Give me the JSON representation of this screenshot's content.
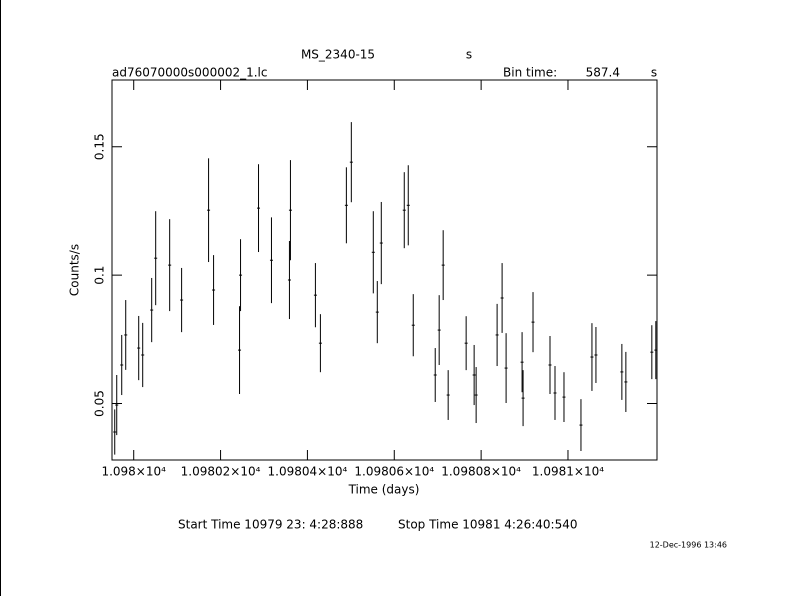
{
  "chart_data": {
    "type": "errorbar",
    "title": "MS_2340-15",
    "title_unit": "s",
    "subtitle": "ad76070000s000002_1.lc",
    "bin_label": "Bin time:",
    "bin_time": "587.4",
    "bin_unit": "s",
    "xlabel": "Time (days)",
    "ylabel": "Counts/s",
    "start_time": "Start Time 10979 23: 4:28:888",
    "stop_time": "Stop Time 10981  4:26:40:540",
    "date": "12-Dec-1996 13:46",
    "color": "#000000",
    "xlim": [
      10979.95,
      10981.205
    ],
    "ylim": [
      0.028,
      0.176
    ],
    "xticks": [
      {
        "value": 10980,
        "label": "1.098×10⁴"
      },
      {
        "value": 10980.2,
        "label": "1.09802×10⁴"
      },
      {
        "value": 10980.4,
        "label": "1.09804×10⁴"
      },
      {
        "value": 10980.6,
        "label": "1.09806×10⁴"
      },
      {
        "value": 10980.8,
        "label": "1.09808×10⁴"
      },
      {
        "value": 10981,
        "label": "1.0981×10⁴"
      }
    ],
    "yticks": [
      0.05,
      0.1,
      0.15
    ],
    "x": [
      10979.9563,
      10979.9609,
      10979.9724,
      10979.9816,
      10980.0115,
      10980.0207,
      10980.0414,
      10980.0506,
      10980.0828,
      10980.1103,
      10980.1724,
      10980.1839,
      10980.2437,
      10980.246,
      10980.2874,
      10980.3172,
      10980.3586,
      10980.3609,
      10980.4184,
      10980.4299,
      10980.4897,
      10980.5011,
      10980.5517,
      10980.5609,
      10980.5701,
      10980.623,
      10980.6322,
      10980.6437,
      10980.6943,
      10980.7034,
      10980.7126,
      10980.7241,
      10980.7655,
      10980.7839,
      10980.7885,
      10980.8368,
      10980.8483,
      10980.8575,
      10980.8943,
      10980.8966,
      10980.9195,
      10980.9586,
      10980.9701,
      10980.9908,
      10981.0299,
      10981.0552,
      10981.0644,
      10981.1241,
      10981.1333,
      10981.1931,
      10981.2023
    ],
    "values": [
      0.0389,
      0.0494,
      0.065,
      0.0767,
      0.0716,
      0.0689,
      0.0864,
      0.1066,
      0.1039,
      0.0903,
      0.1253,
      0.0942,
      0.0708,
      0.1,
      0.1261,
      0.1058,
      0.0981,
      0.1253,
      0.0922,
      0.0735,
      0.1272,
      0.144,
      0.1089,
      0.0856,
      0.1125,
      0.1253,
      0.1272,
      0.0805,
      0.0611,
      0.0786,
      0.1039,
      0.0533,
      0.0735,
      0.0611,
      0.0533,
      0.0767,
      0.0911,
      0.0638,
      0.0661,
      0.0521,
      0.0817,
      0.065,
      0.0541,
      0.0525,
      0.0416,
      0.0681,
      0.0689,
      0.0623,
      0.0584,
      0.07,
      0.0708
    ],
    "errors": [
      0.0088,
      0.0117,
      0.0117,
      0.0136,
      0.0125,
      0.0125,
      0.0125,
      0.0183,
      0.0179,
      0.0125,
      0.0202,
      0.0136,
      0.0171,
      0.014,
      0.0171,
      0.0167,
      0.0152,
      0.0195,
      0.0125,
      0.0113,
      0.0148,
      0.0156,
      0.016,
      0.0121,
      0.016,
      0.0148,
      0.0156,
      0.0121,
      0.0105,
      0.0136,
      0.0136,
      0.0097,
      0.0105,
      0.0117,
      0.0109,
      0.0121,
      0.0136,
      0.0136,
      0.0117,
      0.0109,
      0.0117,
      0.0113,
      0.0105,
      0.0097,
      0.0101,
      0.0132,
      0.0109,
      0.0109,
      0.0117,
      0.0105,
      0.0113
    ]
  }
}
